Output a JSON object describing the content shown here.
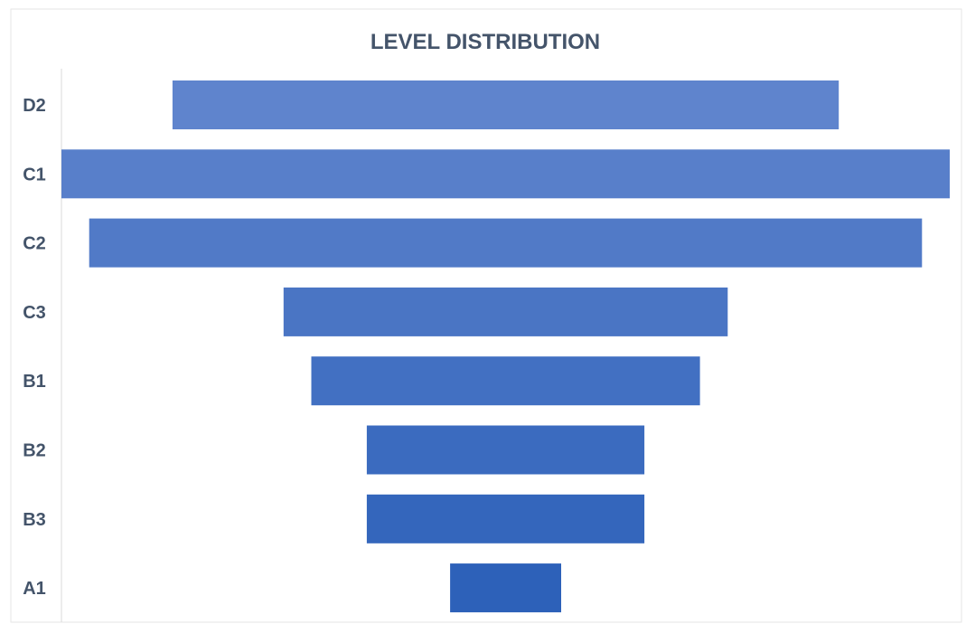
{
  "chart_data": {
    "type": "bar",
    "subtype": "funnel",
    "orientation": "horizontal",
    "title": "LEVEL DISTRIBUTION",
    "categories": [
      "D2",
      "C1",
      "C2",
      "C3",
      "B1",
      "B2",
      "B3",
      "A1"
    ],
    "values": [
      12,
      16,
      15,
      8,
      7,
      5,
      5,
      2
    ],
    "xlabel": "",
    "ylabel": "",
    "grid": false,
    "legend": "none",
    "colors": {
      "bar_top": "#5f84cd",
      "bar_bottom": "#2d61b9",
      "text": "#44546a",
      "frame": "#e6e6e6",
      "axis": "#d9d9d9"
    }
  }
}
